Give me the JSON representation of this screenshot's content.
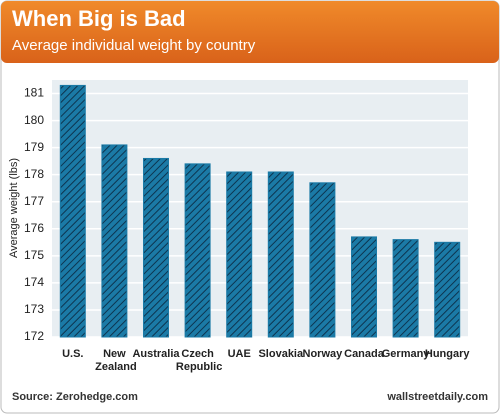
{
  "chart_data": {
    "type": "bar",
    "title": "When Big is Bad",
    "subtitle": "Average individual weight by country",
    "y_label": "Average weight (lbs)",
    "categories": [
      "U.S.",
      "New Zealand",
      "Australia",
      "Czech Republic",
      "UAE",
      "Slovakia",
      "Norway",
      "Canada",
      "Germany",
      "Hungary"
    ],
    "values": [
      181.3,
      179.1,
      178.6,
      178.4,
      178.1,
      178.1,
      177.7,
      175.7,
      175.6,
      175.5
    ],
    "color": "#1b7aa6",
    "ylim": [
      172,
      181.5
    ],
    "yticks": [
      172,
      173,
      174,
      175,
      176,
      177,
      178,
      179,
      180,
      181
    ],
    "grid": true,
    "source": "Source: Zerohedge.com",
    "credit": "wallstreetdaily.com"
  }
}
